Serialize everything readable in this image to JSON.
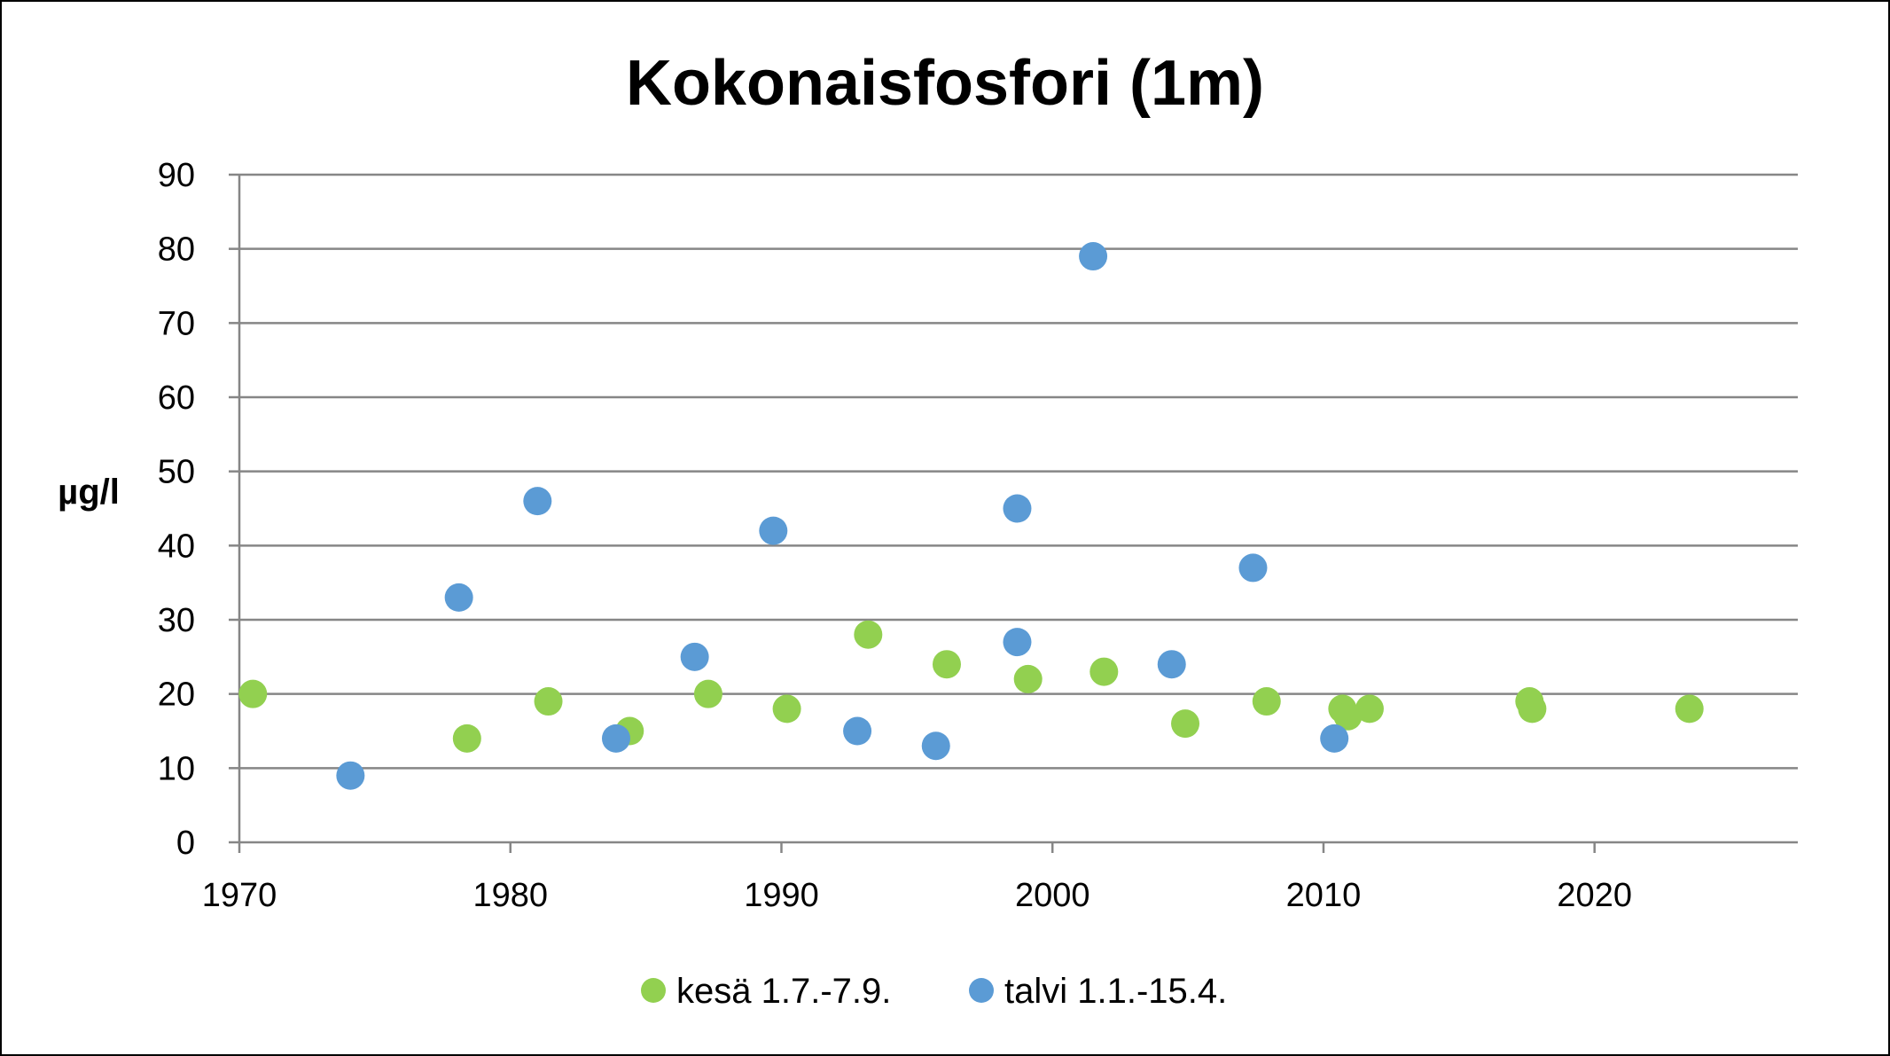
{
  "chart_data": {
    "type": "scatter",
    "title": "Kokonaisfosfori (1m)",
    "xlabel": "",
    "ylabel": "µg/l",
    "xlim": [
      1970,
      2027.5
    ],
    "ylim": [
      0,
      90
    ],
    "xticks": [
      1970,
      1980,
      1990,
      2000,
      2010,
      2020
    ],
    "yticks": [
      0,
      10,
      20,
      30,
      40,
      50,
      60,
      70,
      80,
      90
    ],
    "grid": "horizontal",
    "legend_position": "bottom",
    "series": [
      {
        "name": "kesä 1.7.-7.9.",
        "color": "#92d050",
        "points": [
          {
            "x": 1970.5,
            "y": 20
          },
          {
            "x": 1978.4,
            "y": 14
          },
          {
            "x": 1981.4,
            "y": 19
          },
          {
            "x": 1984.4,
            "y": 15
          },
          {
            "x": 1987.3,
            "y": 20
          },
          {
            "x": 1990.2,
            "y": 18
          },
          {
            "x": 1993.2,
            "y": 28
          },
          {
            "x": 1996.1,
            "y": 24
          },
          {
            "x": 1999.1,
            "y": 22
          },
          {
            "x": 2001.9,
            "y": 23
          },
          {
            "x": 2004.9,
            "y": 16
          },
          {
            "x": 2007.9,
            "y": 19
          },
          {
            "x": 2010.7,
            "y": 18
          },
          {
            "x": 2010.9,
            "y": 17
          },
          {
            "x": 2011.7,
            "y": 18
          },
          {
            "x": 2017.6,
            "y": 19
          },
          {
            "x": 2017.7,
            "y": 18
          },
          {
            "x": 2023.5,
            "y": 18
          }
        ]
      },
      {
        "name": "talvi 1.1.-15.4.",
        "color": "#5b9bd5",
        "points": [
          {
            "x": 1974.1,
            "y": 9
          },
          {
            "x": 1978.1,
            "y": 33
          },
          {
            "x": 1981.0,
            "y": 46
          },
          {
            "x": 1983.9,
            "y": 14
          },
          {
            "x": 1986.8,
            "y": 25
          },
          {
            "x": 1989.7,
            "y": 42
          },
          {
            "x": 1992.8,
            "y": 15
          },
          {
            "x": 1995.7,
            "y": 13
          },
          {
            "x": 1998.7,
            "y": 45
          },
          {
            "x": 1998.7,
            "y": 27
          },
          {
            "x": 2001.5,
            "y": 79
          },
          {
            "x": 2004.4,
            "y": 24
          },
          {
            "x": 2007.4,
            "y": 37
          },
          {
            "x": 2010.4,
            "y": 14
          }
        ]
      }
    ]
  }
}
